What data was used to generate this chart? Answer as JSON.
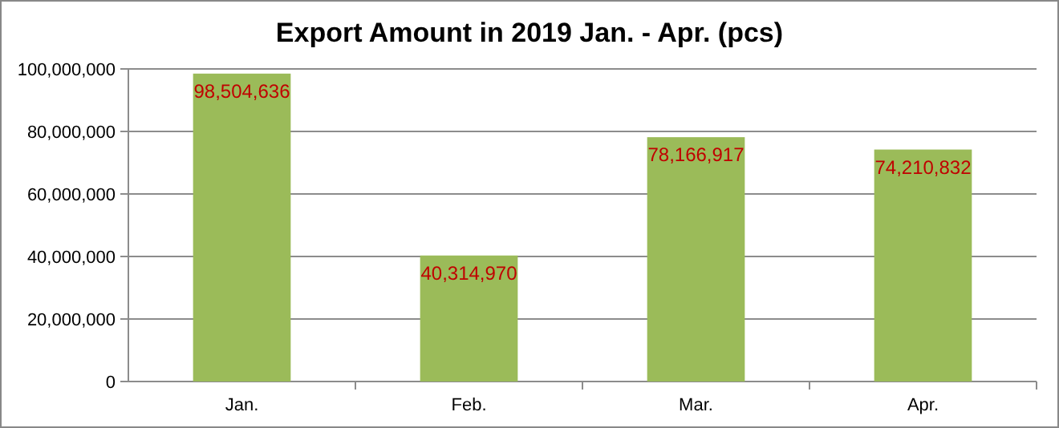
{
  "chart_data": {
    "type": "bar",
    "title": "Export Amount in 2019 Jan. - Apr.  (pcs)",
    "categories": [
      "Jan.",
      "Feb.",
      "Mar.",
      "Apr."
    ],
    "values": [
      98504636,
      40314970,
      78166917,
      74210832
    ],
    "color": "#9bbb59",
    "ylim": [
      0,
      100000000
    ],
    "yticks": [
      {
        "value": 0,
        "label": "0"
      },
      {
        "value": 20000000,
        "label": "20,000,000"
      },
      {
        "value": 40000000,
        "label": "40,000,000"
      },
      {
        "value": 60000000,
        "label": "60,000,000"
      },
      {
        "value": 80000000,
        "label": "80,000,000"
      },
      {
        "value": 100000000,
        "label": "100,000,000"
      }
    ],
    "grid": "y",
    "value_labels": [
      "98,504,636",
      "40,314,970",
      "78,166,917",
      "74,210,832"
    ]
  }
}
